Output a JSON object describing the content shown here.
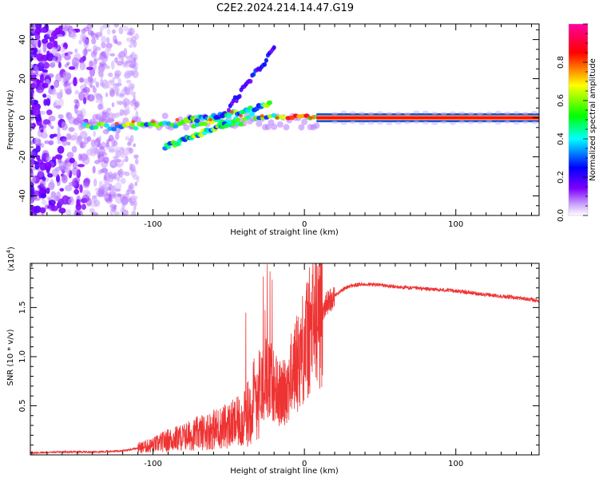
{
  "page_title": "C2E2.2024.214.14.47.G19",
  "chart_data": [
    {
      "id": "spectrogram",
      "type": "heatmap",
      "title": "C2E2.2024.214.14.47.G19",
      "xlabel": "Height of straight line (km)",
      "ylabel": "Frequency (Hz)",
      "xlim": [
        -181,
        155
      ],
      "ylim": [
        -50,
        48
      ],
      "x_ticks": [
        -100,
        0,
        100
      ],
      "x_tick_labels": [
        "-100",
        "0",
        "100"
      ],
      "y_ticks": [
        -40,
        -20,
        0,
        20,
        40
      ],
      "y_tick_labels": [
        "-40",
        "-20",
        "0",
        "20",
        "40"
      ],
      "colorbar": {
        "label": "Normalized spectral amplitude",
        "range": [
          0,
          1
        ],
        "ticks": [
          0,
          0.2,
          0.4,
          0.6,
          0.8
        ],
        "tick_labels": [
          "0.0",
          "0.2",
          "0.4",
          "0.6",
          "0.8"
        ],
        "colormap": [
          "#ffffff",
          "#8000ff",
          "#0000ff",
          "#00ffff",
          "#00ff00",
          "#ffff00",
          "#ff0000",
          "#ff00ff"
        ]
      },
      "features": [
        {
          "name": "noise",
          "x_range": [
            -181,
            -110
          ],
          "freq_range": [
            -50,
            48
          ],
          "amplitude": 0.15
        },
        {
          "name": "main-carrier",
          "x_range": [
            -145,
            155
          ],
          "freq": 0,
          "amplitude": 0.95
        },
        {
          "name": "upper-branch",
          "x_range": [
            -80,
            -20
          ],
          "freq_range": [
            -5,
            35
          ],
          "amplitude": 0.4
        },
        {
          "name": "lower-branch",
          "x_range": [
            -95,
            -45
          ],
          "freq_range": [
            -18,
            0
          ],
          "amplitude": 0.5
        }
      ]
    },
    {
      "id": "snr",
      "type": "line",
      "xlabel": "Height of straight line (km)",
      "ylabel": "SNR (10 * v/v)",
      "y_multiplier": "(x10",
      "y_multiplier_exp": "4",
      "y_multiplier_close": ")",
      "xlim": [
        -181,
        155
      ],
      "ylim": [
        0,
        1.95
      ],
      "x_ticks": [
        -100,
        0,
        100
      ],
      "x_tick_labels": [
        "-100",
        "0",
        "100"
      ],
      "y_ticks": [
        0.5,
        1.0,
        1.5
      ],
      "y_tick_labels": [
        "0.5",
        "1.0",
        "1.5"
      ],
      "color": "#ee3333",
      "series": [
        {
          "name": "SNR",
          "x": [
            -181,
            -160,
            -140,
            -120,
            -110,
            -100,
            -90,
            -80,
            -70,
            -60,
            -50,
            -40,
            -35,
            -30,
            -25,
            -20,
            -15,
            -10,
            -5,
            0,
            5,
            10,
            15,
            20,
            25,
            30,
            40,
            50,
            60,
            80,
            100,
            120,
            140,
            155
          ],
          "y": [
            0.02,
            0.03,
            0.03,
            0.04,
            0.07,
            0.1,
            0.15,
            0.18,
            0.22,
            0.26,
            0.3,
            0.35,
            0.5,
            0.7,
            0.8,
            0.7,
            0.6,
            0.75,
            0.95,
            1.12,
            1.3,
            1.45,
            1.55,
            1.62,
            1.68,
            1.72,
            1.74,
            1.73,
            1.71,
            1.69,
            1.67,
            1.63,
            1.6,
            1.57
          ]
        }
      ]
    }
  ]
}
